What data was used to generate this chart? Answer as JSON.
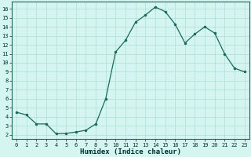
{
  "x": [
    0,
    1,
    2,
    3,
    4,
    5,
    6,
    7,
    8,
    9,
    10,
    11,
    12,
    13,
    14,
    15,
    16,
    17,
    18,
    19,
    20,
    21,
    22,
    23
  ],
  "y": [
    4.5,
    4.2,
    3.2,
    3.2,
    2.1,
    2.15,
    2.3,
    2.5,
    3.2,
    6.0,
    11.2,
    12.5,
    14.5,
    15.3,
    16.2,
    15.7,
    14.3,
    12.2,
    13.2,
    14.0,
    13.3,
    11.0,
    9.4,
    9.0
  ],
  "line_color": "#1a6b5a",
  "marker_color": "#1a6b5a",
  "bg_color": "#d4f5f0",
  "grid_color": "#b0ddd8",
  "xlabel": "Humidex (Indice chaleur)",
  "ylabel_ticks": [
    2,
    3,
    4,
    5,
    6,
    7,
    8,
    9,
    10,
    11,
    12,
    13,
    14,
    15,
    16
  ],
  "ylim": [
    1.5,
    16.8
  ],
  "xlim": [
    -0.5,
    23.5
  ],
  "tick_fontsize": 5.0,
  "xlabel_fontsize": 6.5
}
